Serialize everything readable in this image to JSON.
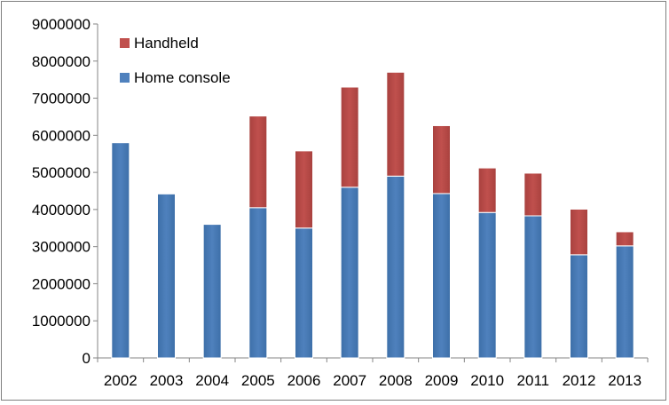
{
  "chart_data": {
    "type": "bar",
    "stacked": true,
    "categories": [
      "2002",
      "2003",
      "2004",
      "2005",
      "2006",
      "2007",
      "2008",
      "2009",
      "2010",
      "2011",
      "2012",
      "2013"
    ],
    "series": [
      {
        "name": "Home console",
        "color": "#4f81bd",
        "values": [
          5800000,
          4420000,
          3600000,
          4050000,
          3500000,
          4600000,
          4900000,
          4430000,
          3920000,
          3830000,
          2780000,
          3020000
        ]
      },
      {
        "name": "Handheld",
        "color": "#c0504d",
        "values": [
          0,
          0,
          0,
          2470000,
          2080000,
          2700000,
          2800000,
          1830000,
          1200000,
          1150000,
          1230000,
          380000
        ]
      }
    ],
    "ylim": [
      0,
      9000000
    ],
    "yticks": [
      "0",
      "1000000",
      "2000000",
      "3000000",
      "4000000",
      "5000000",
      "6000000",
      "7000000",
      "8000000",
      "9000000"
    ],
    "legend_position": "top-left",
    "grid": false
  }
}
